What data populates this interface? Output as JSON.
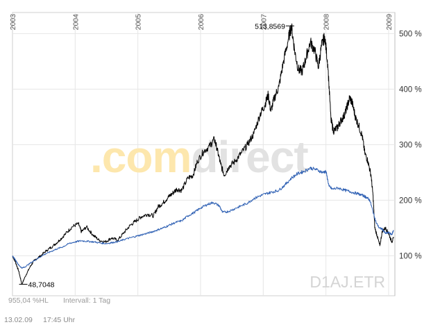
{
  "watermark": {
    "part1": ".com",
    "part2": "direct",
    "part1_color": "#fde7ad",
    "part2_color": "#e2e2e2"
  },
  "symbol": "D1AJ.ETR",
  "footer": {
    "range_text": "955,04 %HL",
    "interval_text": "Intervall: 1 Tag",
    "date": "13.02.09",
    "time": "17:45 Uhr"
  },
  "colors": {
    "series_black": "#000000",
    "series_blue": "#2d5fb3",
    "grid": "#e6e6e6",
    "axis_text": "#555555"
  },
  "chart_data": {
    "type": "line",
    "x_ticks": [
      "2003",
      "2004",
      "2005",
      "2006",
      "2007",
      "2008",
      "2009"
    ],
    "y_ticks": [
      "100 %",
      "200 %",
      "300 %",
      "400 %",
      "500 %"
    ],
    "ylim": [
      28,
      538
    ],
    "xlim": [
      2003.0,
      2009.1
    ],
    "annotations": [
      {
        "label": "513,8569",
        "x": 2007.45,
        "y": 513.86
      },
      {
        "label": "48,7048",
        "x": 2003.15,
        "y": 48.7
      }
    ],
    "series": [
      {
        "points": [
          [
            2003.0,
            100
          ],
          [
            2003.05,
            88
          ],
          [
            2003.1,
            72
          ],
          [
            2003.15,
            48.7
          ],
          [
            2003.2,
            62
          ],
          [
            2003.28,
            80
          ],
          [
            2003.35,
            92
          ],
          [
            2003.45,
            100
          ],
          [
            2003.55,
            110
          ],
          [
            2003.65,
            118
          ],
          [
            2003.75,
            128
          ],
          [
            2003.85,
            140
          ],
          [
            2003.95,
            152
          ],
          [
            2004.05,
            158
          ],
          [
            2004.1,
            143
          ],
          [
            2004.18,
            152
          ],
          [
            2004.28,
            138
          ],
          [
            2004.38,
            128
          ],
          [
            2004.48,
            125
          ],
          [
            2004.58,
            132
          ],
          [
            2004.68,
            128
          ],
          [
            2004.78,
            142
          ],
          [
            2004.88,
            155
          ],
          [
            2004.97,
            163
          ],
          [
            2005.05,
            170
          ],
          [
            2005.15,
            175
          ],
          [
            2005.25,
            172
          ],
          [
            2005.32,
            188
          ],
          [
            2005.4,
            195
          ],
          [
            2005.48,
            205
          ],
          [
            2005.55,
            212
          ],
          [
            2005.62,
            220
          ],
          [
            2005.7,
            218
          ],
          [
            2005.8,
            240
          ],
          [
            2005.88,
            245
          ],
          [
            2005.95,
            270
          ],
          [
            2006.05,
            288
          ],
          [
            2006.15,
            298
          ],
          [
            2006.22,
            310
          ],
          [
            2006.26,
            294
          ],
          [
            2006.32,
            265
          ],
          [
            2006.38,
            245
          ],
          [
            2006.45,
            260
          ],
          [
            2006.55,
            270
          ],
          [
            2006.65,
            285
          ],
          [
            2006.75,
            300
          ],
          [
            2006.85,
            320
          ],
          [
            2006.95,
            355
          ],
          [
            2007.02,
            370
          ],
          [
            2007.08,
            390
          ],
          [
            2007.12,
            360
          ],
          [
            2007.18,
            385
          ],
          [
            2007.25,
            405
          ],
          [
            2007.32,
            448
          ],
          [
            2007.4,
            490
          ],
          [
            2007.45,
            513.86
          ],
          [
            2007.5,
            470
          ],
          [
            2007.56,
            435
          ],
          [
            2007.62,
            432
          ],
          [
            2007.68,
            455
          ],
          [
            2007.75,
            485
          ],
          [
            2007.82,
            470
          ],
          [
            2007.88,
            440
          ],
          [
            2007.93,
            478
          ],
          [
            2007.98,
            495
          ],
          [
            2008.03,
            445
          ],
          [
            2008.08,
            345
          ],
          [
            2008.12,
            325
          ],
          [
            2008.18,
            330
          ],
          [
            2008.22,
            340
          ],
          [
            2008.28,
            350
          ],
          [
            2008.33,
            365
          ],
          [
            2008.38,
            385
          ],
          [
            2008.42,
            375
          ],
          [
            2008.47,
            350
          ],
          [
            2008.52,
            335
          ],
          [
            2008.58,
            315
          ],
          [
            2008.62,
            285
          ],
          [
            2008.67,
            270
          ],
          [
            2008.72,
            245
          ],
          [
            2008.75,
            210
          ],
          [
            2008.78,
            150
          ],
          [
            2008.82,
            135
          ],
          [
            2008.86,
            118
          ],
          [
            2008.9,
            145
          ],
          [
            2008.95,
            150
          ],
          [
            2009.0,
            140
          ],
          [
            2009.05,
            125
          ],
          [
            2009.08,
            132
          ]
        ]
      },
      {
        "points": [
          [
            2003.0,
            100
          ],
          [
            2003.05,
            92
          ],
          [
            2003.1,
            83
          ],
          [
            2003.15,
            78
          ],
          [
            2003.2,
            80
          ],
          [
            2003.3,
            88
          ],
          [
            2003.4,
            95
          ],
          [
            2003.5,
            102
          ],
          [
            2003.6,
            107
          ],
          [
            2003.7,
            112
          ],
          [
            2003.8,
            116
          ],
          [
            2003.9,
            122
          ],
          [
            2004.0,
            125
          ],
          [
            2004.1,
            127
          ],
          [
            2004.2,
            126
          ],
          [
            2004.3,
            125
          ],
          [
            2004.4,
            123
          ],
          [
            2004.5,
            122
          ],
          [
            2004.6,
            124
          ],
          [
            2004.7,
            126
          ],
          [
            2004.8,
            130
          ],
          [
            2004.9,
            133
          ],
          [
            2005.0,
            136
          ],
          [
            2005.1,
            139
          ],
          [
            2005.2,
            142
          ],
          [
            2005.3,
            146
          ],
          [
            2005.4,
            150
          ],
          [
            2005.5,
            155
          ],
          [
            2005.6,
            160
          ],
          [
            2005.7,
            163
          ],
          [
            2005.8,
            172
          ],
          [
            2005.9,
            178
          ],
          [
            2006.0,
            186
          ],
          [
            2006.1,
            192
          ],
          [
            2006.2,
            196
          ],
          [
            2006.3,
            190
          ],
          [
            2006.35,
            178
          ],
          [
            2006.45,
            180
          ],
          [
            2006.55,
            185
          ],
          [
            2006.65,
            190
          ],
          [
            2006.75,
            195
          ],
          [
            2006.85,
            203
          ],
          [
            2006.95,
            208
          ],
          [
            2007.05,
            212
          ],
          [
            2007.15,
            215
          ],
          [
            2007.25,
            218
          ],
          [
            2007.35,
            228
          ],
          [
            2007.45,
            240
          ],
          [
            2007.55,
            248
          ],
          [
            2007.65,
            252
          ],
          [
            2007.75,
            258
          ],
          [
            2007.85,
            255
          ],
          [
            2007.95,
            250
          ],
          [
            2008.0,
            252
          ],
          [
            2008.05,
            225
          ],
          [
            2008.1,
            220
          ],
          [
            2008.2,
            222
          ],
          [
            2008.3,
            218
          ],
          [
            2008.4,
            215
          ],
          [
            2008.5,
            212
          ],
          [
            2008.6,
            208
          ],
          [
            2008.65,
            205
          ],
          [
            2008.7,
            200
          ],
          [
            2008.75,
            180
          ],
          [
            2008.8,
            160
          ],
          [
            2008.85,
            150
          ],
          [
            2008.9,
            148
          ],
          [
            2008.95,
            140
          ],
          [
            2009.0,
            142
          ],
          [
            2009.05,
            138
          ],
          [
            2009.08,
            146
          ]
        ]
      }
    ]
  }
}
